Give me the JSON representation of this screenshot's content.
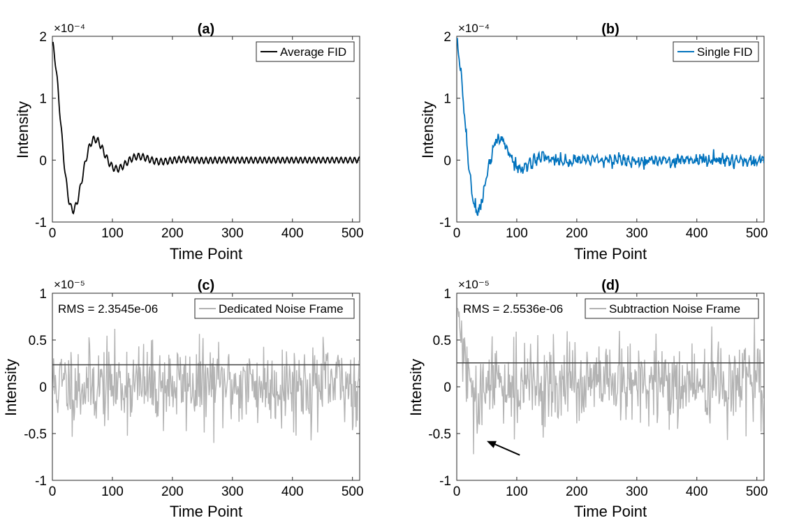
{
  "figure": {
    "colors": {
      "average_fid": "#000000",
      "single_fid": "#0072BD",
      "noise": "#b3b3b3",
      "rms_line": "#444444",
      "axes": "#262626"
    }
  },
  "chart_data": [
    {
      "id": "a",
      "type": "line",
      "title": "(a)",
      "xlabel": "Time Point",
      "ylabel": "Intensity",
      "exponent_label": "×10⁻⁴",
      "xlim": [
        0,
        512
      ],
      "ylim": [
        -1,
        2
      ],
      "xticks": [
        0,
        100,
        200,
        300,
        400,
        500
      ],
      "yticks": [
        -1,
        0,
        1,
        2
      ],
      "ytick_labels": [
        "-1",
        "0",
        "1",
        "2"
      ],
      "legend": "top-right",
      "series": [
        {
          "name": "Average FID",
          "color": "#000000",
          "signal": {
            "amp": 1.85,
            "decay": 42,
            "period": 73,
            "ripple_amp": 0.06,
            "ripple_period": 7.5,
            "noise": 0.0,
            "points": 512
          }
        }
      ]
    },
    {
      "id": "b",
      "type": "line",
      "title": "(b)",
      "xlabel": "Time Point",
      "ylabel": "Intensity",
      "exponent_label": "×10⁻⁴",
      "xlim": [
        0,
        512
      ],
      "ylim": [
        -1,
        2
      ],
      "xticks": [
        0,
        100,
        200,
        300,
        400,
        500
      ],
      "yticks": [
        -1,
        0,
        1,
        2
      ],
      "ytick_labels": [
        "-1",
        "0",
        "1",
        "2"
      ],
      "legend": "top-right",
      "series": [
        {
          "name": "Single FID",
          "color": "#0072BD",
          "signal": {
            "amp": 1.85,
            "decay": 42,
            "period": 73,
            "ripple_amp": 0.06,
            "ripple_period": 7.5,
            "noise": 0.045,
            "points": 512
          }
        }
      ]
    },
    {
      "id": "c",
      "type": "line",
      "title": "(c)",
      "xlabel": "Time Point",
      "ylabel": "Intensity",
      "exponent_label": "×10⁻⁵",
      "xlim": [
        0,
        512
      ],
      "ylim": [
        -1,
        1
      ],
      "xticks": [
        0,
        100,
        200,
        300,
        400,
        500
      ],
      "yticks": [
        -1,
        -0.5,
        0,
        0.5,
        1
      ],
      "ytick_labels": [
        "-1",
        "-0.5",
        "0",
        "0.5",
        "1"
      ],
      "legend": "top-right",
      "annotation": "RMS = 2.3545e-06",
      "rms_value": 0.23545,
      "series": [
        {
          "name": "Dedicated Noise Frame",
          "color": "#b3b3b3",
          "signal": {
            "noise_std": 0.22,
            "seed": 11,
            "baseline_start": 0.0,
            "baseline_decay": 1,
            "points": 512
          }
        }
      ]
    },
    {
      "id": "d",
      "type": "line",
      "title": "(d)",
      "xlabel": "Time Point",
      "ylabel": "Intensity",
      "exponent_label": "×10⁻⁵",
      "xlim": [
        0,
        512
      ],
      "ylim": [
        -1,
        1
      ],
      "xticks": [
        0,
        100,
        200,
        300,
        400,
        500
      ],
      "yticks": [
        -1,
        -0.5,
        0,
        0.5,
        1
      ],
      "ytick_labels": [
        "-1",
        "-0.5",
        "0",
        "0.5",
        "1"
      ],
      "legend": "top-right",
      "annotation": "RMS = 2.5536e-06",
      "rms_value": 0.25536,
      "arrow_target": {
        "x": 50,
        "y": -0.58
      },
      "arrow_tail": {
        "x": 105,
        "y": -0.73
      },
      "series": [
        {
          "name": "Subtraction Noise Frame",
          "color": "#b3b3b3",
          "signal": {
            "noise_std": 0.22,
            "seed": 29,
            "residual": true,
            "points": 512
          }
        }
      ]
    }
  ]
}
